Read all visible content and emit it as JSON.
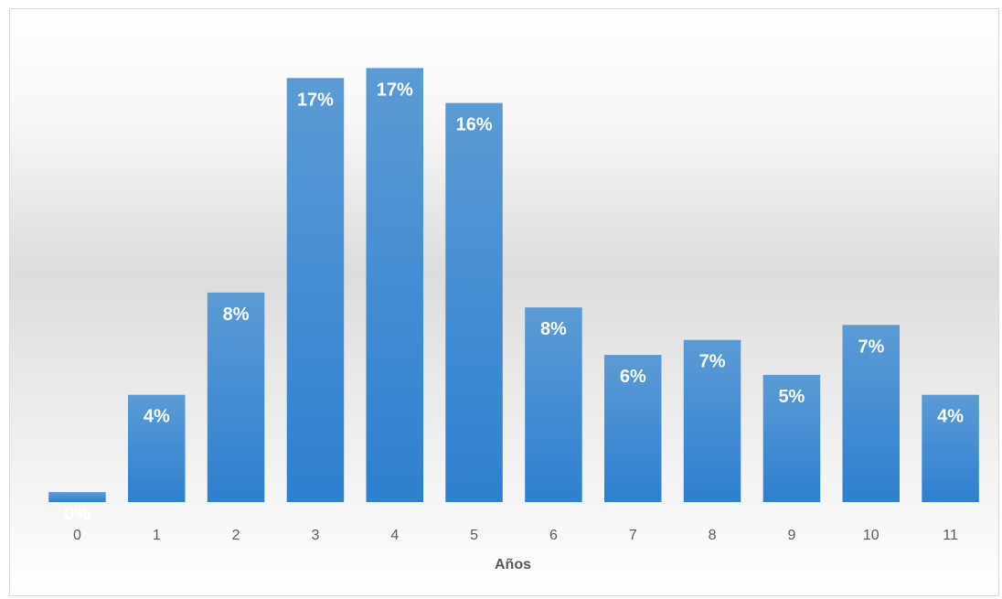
{
  "chart_data": {
    "type": "bar",
    "title": "",
    "xlabel": "Años",
    "ylabel": "",
    "categories": [
      "0",
      "1",
      "2",
      "3",
      "4",
      "5",
      "6",
      "7",
      "8",
      "9",
      "10",
      "11"
    ],
    "values": [
      0.4,
      4.3,
      8.4,
      17.0,
      17.4,
      16.0,
      7.8,
      5.9,
      6.5,
      5.1,
      7.1,
      4.3
    ],
    "data_labels": [
      "0%",
      "4%",
      "8%",
      "17%",
      "17%",
      "16%",
      "8%",
      "6%",
      "7%",
      "5%",
      "7%",
      "4%"
    ],
    "ylim": [
      0,
      18
    ],
    "grid": false,
    "legend": "none",
    "colors": {
      "bar_top": "#5b9bd5",
      "bar_bottom": "#2e7fd0",
      "label": "#ffffff",
      "tick": "#595959"
    }
  }
}
